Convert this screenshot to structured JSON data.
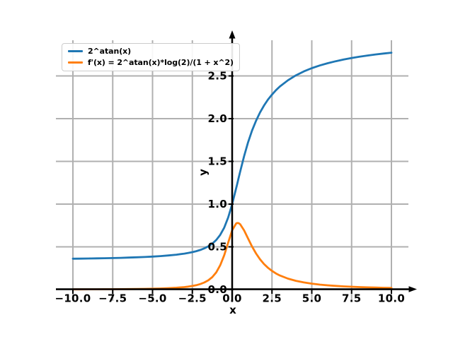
{
  "figure": {
    "background": "#ffffff"
  },
  "chart_data": {
    "type": "line",
    "title": "",
    "xlabel": "x",
    "ylabel": "y",
    "xlim": [
      -11.07,
      11.07
    ],
    "ylim": [
      -0.13,
      2.92
    ],
    "grid": true,
    "legend": {
      "position": "upper left"
    },
    "colors": {
      "grid": "#b0b0b0",
      "axis": "#000000",
      "background": "#ffffff",
      "legend_border": "#cccccc"
    },
    "xticks": {
      "values": [
        -10,
        -7.5,
        -5,
        -2.5,
        0,
        2.5,
        5,
        7.5,
        10
      ],
      "labels": [
        "−10.0",
        "−7.5",
        "−5.0",
        "−2.5",
        "0.0",
        "2.5",
        "5.0",
        "7.5",
        "10.0"
      ]
    },
    "yticks": {
      "values": [
        0,
        0.5,
        1,
        1.5,
        2,
        2.5
      ],
      "labels": [
        "0.0",
        "0.5",
        "1.0",
        "1.5",
        "2.0",
        "2.5"
      ]
    },
    "x": [
      -10,
      -9.5,
      -9,
      -8.5,
      -8,
      -7.5,
      -7,
      -6.5,
      -6,
      -5.5,
      -5,
      -4.5,
      -4,
      -3.5,
      -3,
      -2.75,
      -2.5,
      -2.25,
      -2,
      -1.75,
      -1.5,
      -1.25,
      -1,
      -0.75,
      -0.5,
      -0.25,
      0,
      0.25,
      0.3,
      0.4,
      0.5,
      0.75,
      1,
      1.25,
      1.5,
      1.75,
      2,
      2.25,
      2.5,
      2.75,
      3,
      3.5,
      4,
      4.5,
      5,
      5.5,
      6,
      6.5,
      7,
      7.5,
      8,
      8.5,
      9,
      9.5,
      10
    ],
    "series": [
      {
        "name": "2^atan(x)",
        "color": "#1f77b4",
        "values": [
          0.361,
          0.362,
          0.364,
          0.365,
          0.367,
          0.369,
          0.371,
          0.374,
          0.378,
          0.381,
          0.386,
          0.392,
          0.399,
          0.408,
          0.421,
          0.429,
          0.438,
          0.45,
          0.464,
          0.482,
          0.506,
          0.537,
          0.58,
          0.64,
          0.725,
          0.844,
          1.0,
          1.185,
          1.224,
          1.302,
          1.379,
          1.562,
          1.724,
          1.861,
          1.976,
          2.073,
          2.154,
          2.223,
          2.282,
          2.333,
          2.377,
          2.449,
          2.507,
          2.553,
          2.591,
          2.622,
          2.649,
          2.672,
          2.692,
          2.71,
          2.725,
          2.739,
          2.751,
          2.762,
          2.772
        ]
      },
      {
        "name": "f'(x) = 2^atan(x)*log(2)/(1 + x^2)",
        "color": "#ff7f0e",
        "values": [
          0.0025,
          0.0027,
          0.0031,
          0.0035,
          0.0039,
          0.0045,
          0.0051,
          0.006,
          0.0071,
          0.0085,
          0.0103,
          0.0128,
          0.0163,
          0.0214,
          0.0292,
          0.0347,
          0.0419,
          0.0514,
          0.0644,
          0.0823,
          0.1079,
          0.1453,
          0.2011,
          0.284,
          0.4021,
          0.5504,
          0.6931,
          0.7731,
          0.7783,
          0.7779,
          0.7647,
          0.6929,
          0.5973,
          0.5034,
          0.4215,
          0.3537,
          0.2986,
          0.2542,
          0.2182,
          0.1888,
          0.1647,
          0.1281,
          0.1022,
          0.0833,
          0.0691,
          0.0582,
          0.0496,
          0.0428,
          0.0373,
          0.0328,
          0.0291,
          0.0259,
          0.0233,
          0.021,
          0.019
        ]
      }
    ]
  }
}
